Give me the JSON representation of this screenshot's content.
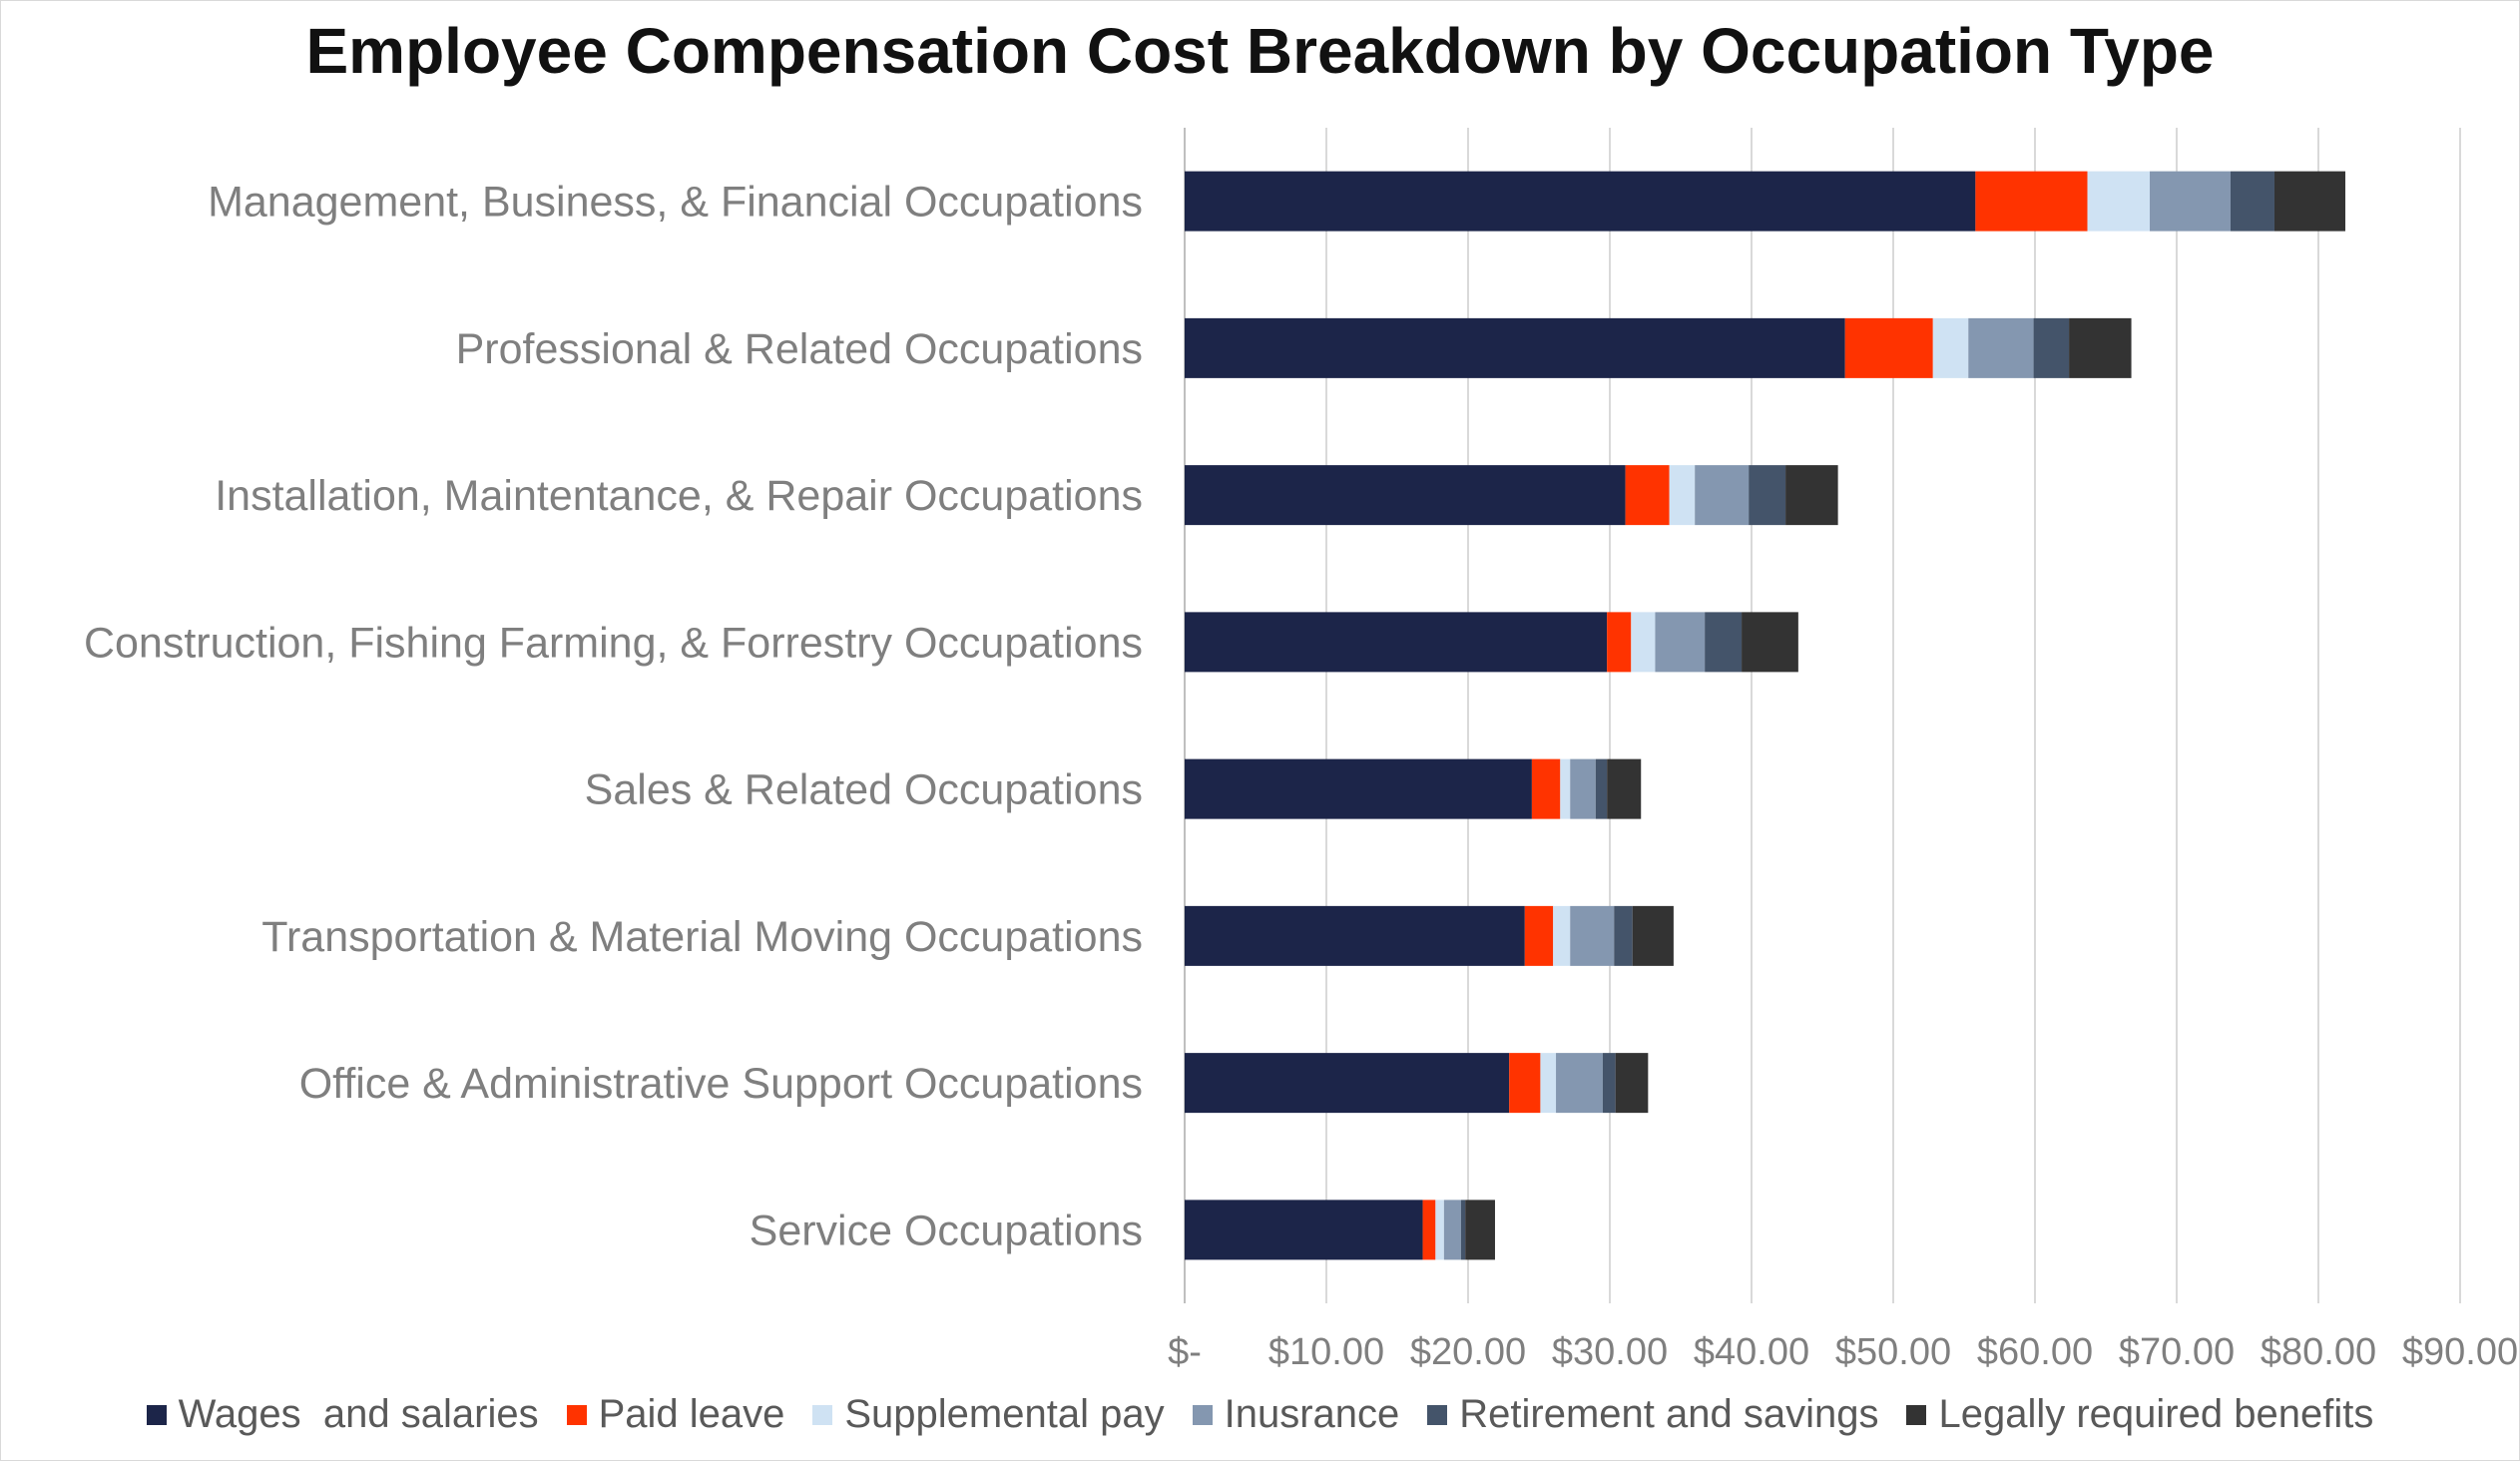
{
  "chart_data": {
    "type": "bar",
    "orientation": "horizontal",
    "stacked": true,
    "title": "Employee Compensation Cost Breakdown by Occupation Type",
    "xlabel": "",
    "ylabel": "",
    "xlim": [
      0,
      90
    ],
    "grid": true,
    "legend_position": "bottom",
    "x_tick_labels": [
      "$-",
      "$10.00",
      "$20.00",
      "$30.00",
      "$40.00",
      "$50.00",
      "$60.00",
      "$70.00",
      "$80.00",
      "$90.00"
    ],
    "categories": [
      "Management, Business, & Financial Occupations",
      "Professional & Related Occupations",
      "Installation, Maintentance, & Repair Occupations",
      "Construction, Fishing Farming, & Forrestry Occupations",
      "Sales & Related Occupations",
      "Transportation & Material Moving Occupations",
      "Office & Administrative Support Occupations",
      "Service Occupations"
    ],
    "series": [
      {
        "name": "Wages  and salaries",
        "color": "#1c2549",
        "values": [
          55.8,
          46.6,
          31.1,
          29.8,
          24.5,
          24.0,
          22.9,
          16.8
        ]
      },
      {
        "name": "Paid leave",
        "color": "#ff3300",
        "values": [
          7.9,
          6.2,
          3.1,
          1.7,
          2.0,
          2.0,
          2.2,
          0.9
        ]
      },
      {
        "name": "Supplemental pay",
        "color": "#cfe2f3",
        "values": [
          4.4,
          2.5,
          1.8,
          1.7,
          0.7,
          1.2,
          1.1,
          0.6
        ]
      },
      {
        "name": "Inusrance",
        "color": "#8497b0",
        "values": [
          5.7,
          4.6,
          3.8,
          3.5,
          1.8,
          3.1,
          3.3,
          1.2
        ]
      },
      {
        "name": "Retirement and savings",
        "color": "#44546a",
        "values": [
          3.1,
          2.5,
          2.6,
          2.6,
          0.8,
          1.3,
          0.9,
          0.3
        ]
      },
      {
        "name": "Legally required benefits",
        "color": "#333333",
        "values": [
          5.0,
          4.4,
          3.7,
          4.0,
          2.4,
          2.9,
          2.3,
          2.1
        ]
      }
    ]
  }
}
